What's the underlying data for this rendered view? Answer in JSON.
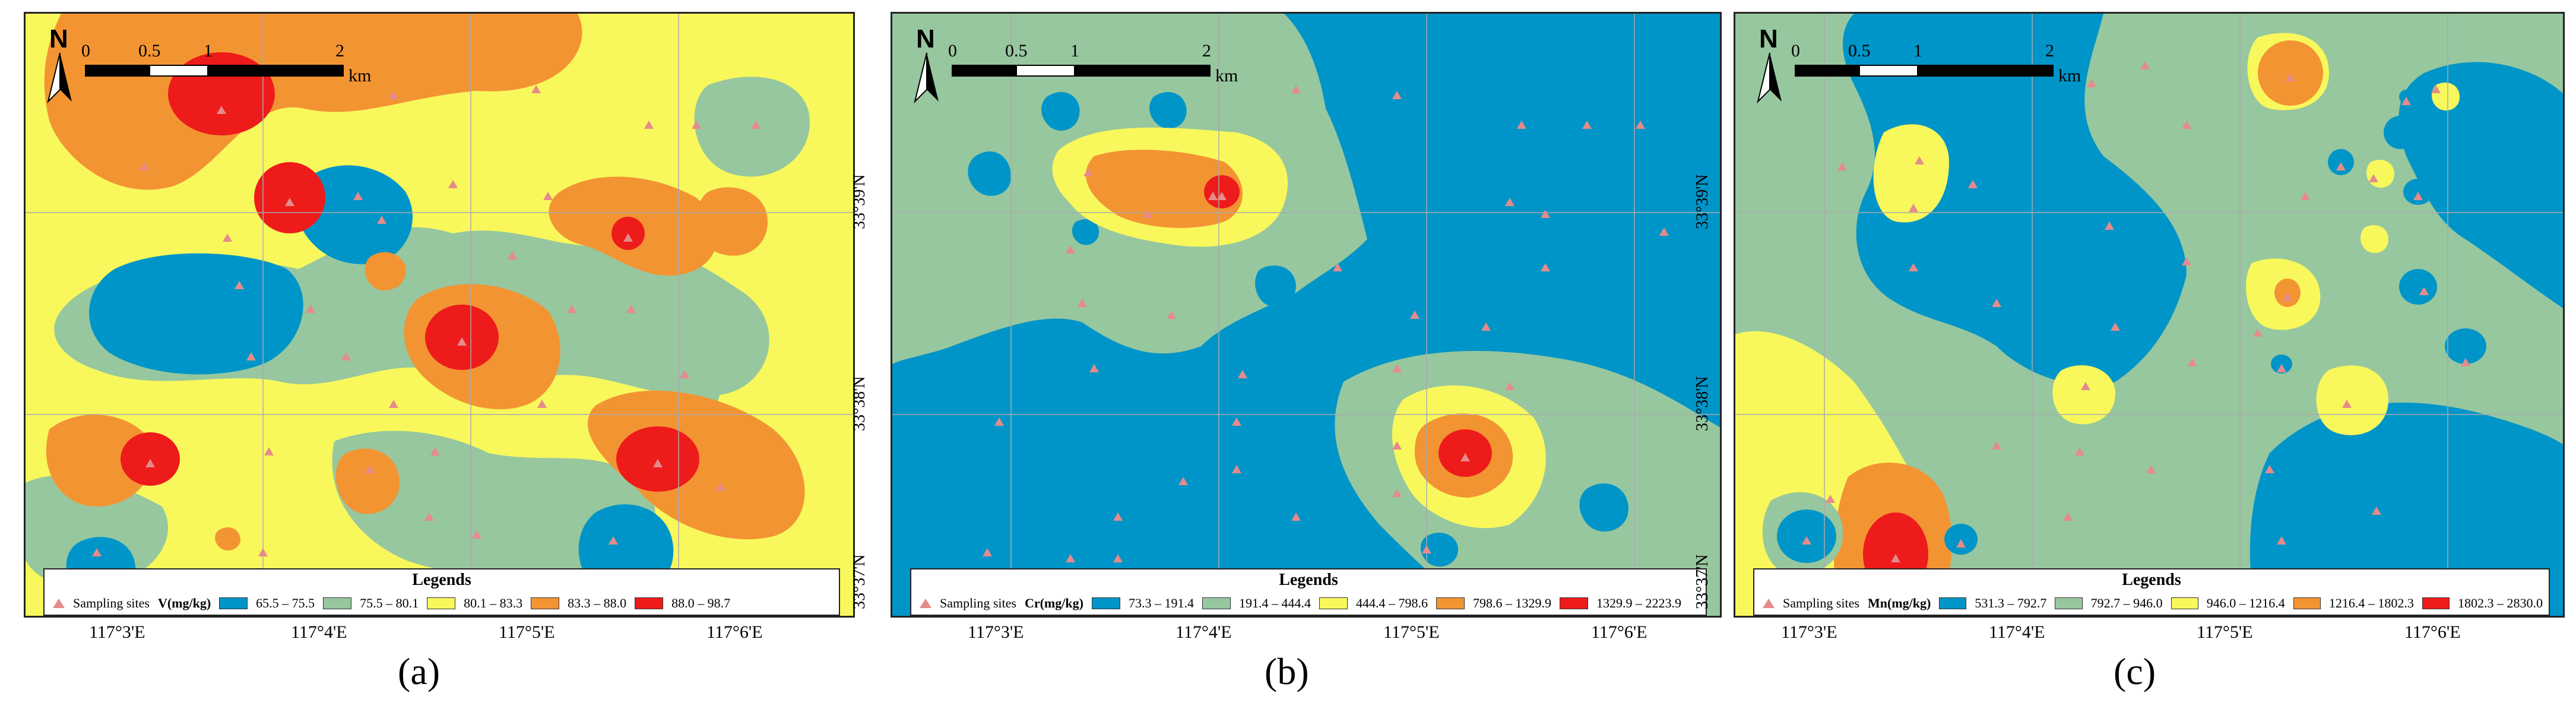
{
  "panels": [
    {
      "id": "a",
      "caption": "(a)",
      "legend_title": "Legends",
      "sites_label": "Sampling sites",
      "unit": "V(mg/kg)",
      "classes": [
        {
          "range": "65.5 – 75.5",
          "color": "#0095c8"
        },
        {
          "range": "75.5 – 80.1",
          "color": "#97c79f"
        },
        {
          "range": "80.1 – 83.3",
          "color": "#f8f85c"
        },
        {
          "range": "83.3 – 88.0",
          "color": "#f39433"
        },
        {
          "range": "88.0 – 98.7",
          "color": "#ee1b1b"
        }
      ]
    },
    {
      "id": "b",
      "caption": "(b)",
      "legend_title": "Legends",
      "sites_label": "Sampling sites",
      "unit": "Cr(mg/kg)",
      "classes": [
        {
          "range": "73.3 – 191.4",
          "color": "#0095c8"
        },
        {
          "range": "191.4 – 444.4",
          "color": "#97c79f"
        },
        {
          "range": "444.4 – 798.6",
          "color": "#f8f85c"
        },
        {
          "range": "798.6 – 1329.9",
          "color": "#f39433"
        },
        {
          "range": "1329.9 – 2223.9",
          "color": "#ee1b1b"
        }
      ]
    },
    {
      "id": "c",
      "caption": "(c)",
      "legend_title": "Legends",
      "sites_label": "Sampling sites",
      "unit": "Mn(mg/kg)",
      "classes": [
        {
          "range": "531.3 – 792.7",
          "color": "#0095c8"
        },
        {
          "range": "792.7 – 946.0",
          "color": "#97c79f"
        },
        {
          "range": "946.0 – 1216.4",
          "color": "#f8f85c"
        },
        {
          "range": "1216.4 – 1802.3",
          "color": "#f39433"
        },
        {
          "range": "1802.3 – 2830.0",
          "color": "#ee1b1b"
        }
      ]
    }
  ],
  "scale_bar": {
    "ticks": [
      "0",
      "0.5",
      "1",
      "2"
    ],
    "unit": "km"
  },
  "north_label": "N",
  "lat_labels": [
    "33°39'N",
    "33°38'N",
    "33°37'N"
  ],
  "lon_labels": [
    "117°3'E",
    "117°4'E",
    "117°5'E",
    "117°6'E"
  ],
  "colors": {
    "site_marker": "#e58b8b"
  },
  "icons": {
    "north_arrow": "north-arrow-icon",
    "sampling_site": "triangle-marker-icon"
  }
}
